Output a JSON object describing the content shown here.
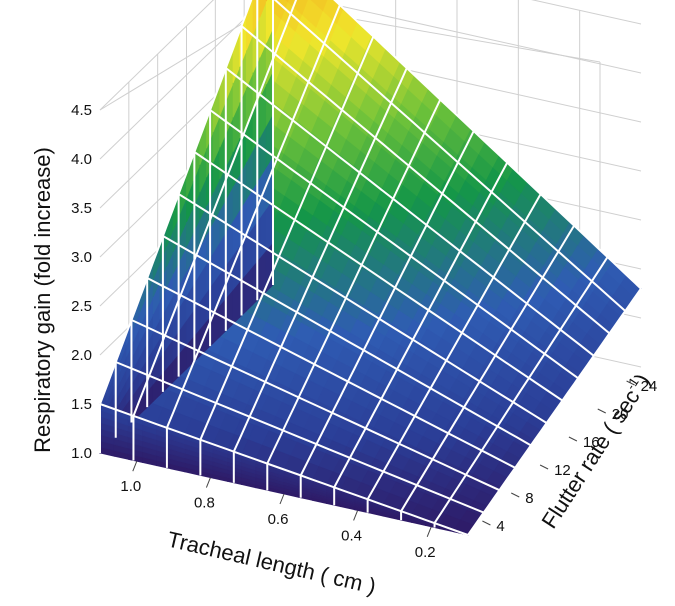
{
  "chart_data": {
    "type": "surface",
    "title": "",
    "zlabel": "Respiratory gain (fold increase)",
    "xlabel": "Tracheal length ( cm )",
    "ylabel_main": "Flutter rate ( sec",
    "ylabel_sup": "-1",
    "ylabel_end": ")",
    "z_ticks": [
      "1.0",
      "1.5",
      "2.0",
      "2.5",
      "3.0",
      "3.5",
      "4.0",
      "4.5"
    ],
    "z_range": [
      1.0,
      4.5
    ],
    "x_ticks": [
      "1.0",
      "0.8",
      "0.6",
      "0.4",
      "0.2"
    ],
    "x_range": [
      0.1,
      1.1
    ],
    "y_ticks": [
      "4",
      "8",
      "12",
      "16",
      "20",
      "24"
    ],
    "y_range": [
      2,
      26
    ],
    "surface": {
      "description_of_values": "gain rises with tracheal length and flutter rate",
      "corner_values": {
        "short_slow": 1.0,
        "long_slow": 1.5,
        "short_fast": 1.8,
        "long_fast": 4.5
      }
    },
    "colormap": [
      "#2e1a66",
      "#2b3e97",
      "#2f5cb3",
      "#149648",
      "#6cc13a",
      "#f0e62c",
      "#f6a21d"
    ],
    "grid": true
  }
}
